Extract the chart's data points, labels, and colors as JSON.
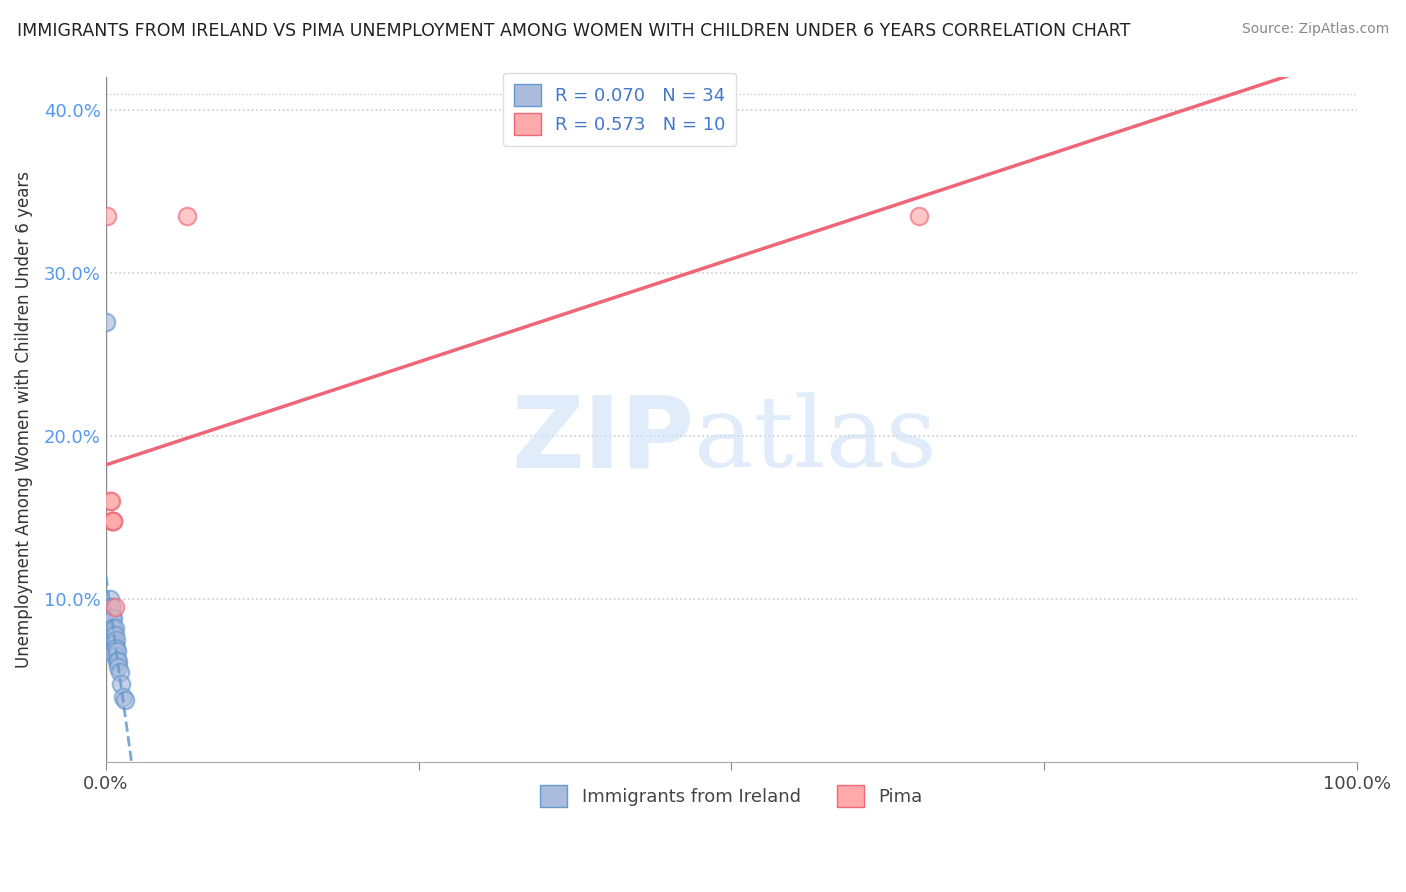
{
  "title": "IMMIGRANTS FROM IRELAND VS PIMA UNEMPLOYMENT AMONG WOMEN WITH CHILDREN UNDER 6 YEARS CORRELATION CHART",
  "source": "Source: ZipAtlas.com",
  "ylabel": "Unemployment Among Women with Children Under 6 years",
  "xlim": [
    0,
    1.0
  ],
  "ylim": [
    0,
    0.42
  ],
  "blue_R": 0.07,
  "blue_N": 34,
  "pink_R": 0.573,
  "pink_N": 10,
  "blue_x": [
    0.0,
    0.0,
    0.001,
    0.001,
    0.002,
    0.002,
    0.003,
    0.003,
    0.003,
    0.004,
    0.004,
    0.004,
    0.004,
    0.005,
    0.005,
    0.005,
    0.005,
    0.006,
    0.006,
    0.006,
    0.007,
    0.007,
    0.007,
    0.008,
    0.008,
    0.008,
    0.009,
    0.009,
    0.01,
    0.01,
    0.011,
    0.012,
    0.014,
    0.015
  ],
  "blue_y": [
    0.27,
    0.08,
    0.08,
    0.068,
    0.09,
    0.078,
    0.1,
    0.095,
    0.085,
    0.092,
    0.088,
    0.082,
    0.078,
    0.095,
    0.088,
    0.082,
    0.078,
    0.088,
    0.082,
    0.075,
    0.082,
    0.078,
    0.072,
    0.075,
    0.07,
    0.065,
    0.068,
    0.062,
    0.062,
    0.058,
    0.055,
    0.048,
    0.04,
    0.038
  ],
  "pink_x": [
    0.001,
    0.003,
    0.004,
    0.005,
    0.005,
    0.006,
    0.006,
    0.007,
    0.065,
    0.65
  ],
  "pink_y": [
    0.335,
    0.16,
    0.16,
    0.148,
    0.148,
    0.148,
    0.148,
    0.095,
    0.335,
    0.335
  ],
  "blue_line_color": "#6699cc",
  "pink_line_color": "#ee6677",
  "blue_dot_color": "#aabbdd",
  "pink_dot_color": "#ffaaaa",
  "watermark_zip": "ZIP",
  "watermark_atlas": "atlas",
  "background_color": "#ffffff",
  "grid_color": "#cccccc",
  "ytick_color": "#5599ee"
}
